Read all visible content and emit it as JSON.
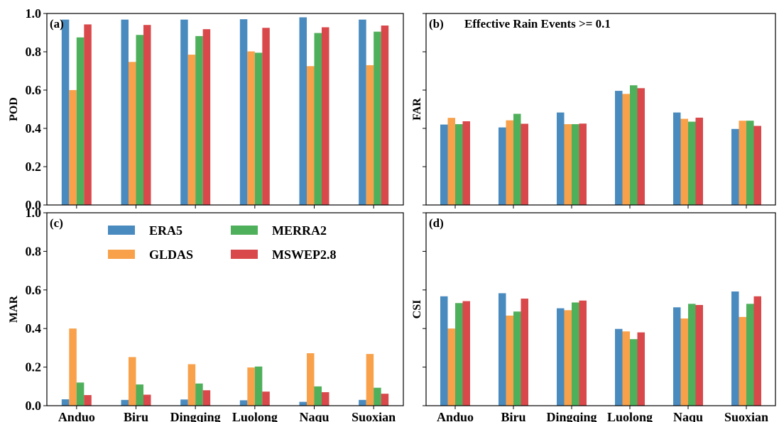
{
  "figure": {
    "stations": [
      "Anduo",
      "Biru",
      "Dingqing",
      "Luolong",
      "Naqu",
      "Suoxian"
    ],
    "series_colors": {
      "ERA5": "#4a8bbf",
      "GLDAS": "#f8a14a",
      "MERRA2": "#4fb05b",
      "MSWEP2.8": "#d9494b"
    },
    "legend": {
      "placement": "upper-left of panel (c)",
      "entries": [
        "ERA5",
        "GLDAS",
        "MERRA2",
        "MSWEP2.8"
      ]
    }
  },
  "chart_data": [
    {
      "type": "bar",
      "panel_label": "(a)",
      "title": "",
      "ylabel": "POD",
      "xlabel": "",
      "ylim": [
        0,
        1.0
      ],
      "yticks": [
        "0.0",
        "0.2",
        "0.4",
        "0.6",
        "0.8",
        "1.0"
      ],
      "categories": [
        "Anduo",
        "Biru",
        "Dingqing",
        "Luolong",
        "Naqu",
        "Suoxian"
      ],
      "show_xticklabels": false,
      "show_yticklabels": true,
      "series": [
        {
          "name": "ERA5",
          "values": [
            0.968,
            0.968,
            0.968,
            0.97,
            0.98,
            0.968
          ]
        },
        {
          "name": "GLDAS",
          "values": [
            0.6,
            0.747,
            0.785,
            0.802,
            0.725,
            0.73
          ]
        },
        {
          "name": "MERRA2",
          "values": [
            0.875,
            0.888,
            0.882,
            0.795,
            0.898,
            0.905
          ]
        },
        {
          "name": "MSWEP2.8",
          "values": [
            0.943,
            0.94,
            0.918,
            0.925,
            0.928,
            0.937
          ]
        }
      ]
    },
    {
      "type": "bar",
      "panel_label": "(b)",
      "title": "Effective Rain Events >= 0.1",
      "ylabel": "FAR",
      "xlabel": "",
      "ylim": [
        0,
        1.0
      ],
      "yticks": [],
      "categories": [
        "Anduo",
        "Biru",
        "Dingqing",
        "Luolong",
        "Naqu",
        "Suoxian"
      ],
      "show_xticklabels": false,
      "show_yticklabels": false,
      "series": [
        {
          "name": "ERA5",
          "values": [
            0.42,
            0.405,
            0.483,
            0.596,
            0.483,
            0.397
          ]
        },
        {
          "name": "GLDAS",
          "values": [
            0.455,
            0.442,
            0.422,
            0.58,
            0.45,
            0.44
          ]
        },
        {
          "name": "MERRA2",
          "values": [
            0.422,
            0.476,
            0.422,
            0.625,
            0.435,
            0.44
          ]
        },
        {
          "name": "MSWEP2.8",
          "values": [
            0.437,
            0.424,
            0.425,
            0.61,
            0.456,
            0.413
          ]
        }
      ]
    },
    {
      "type": "bar",
      "panel_label": "(c)",
      "title": "",
      "ylabel": "MAR",
      "xlabel": "",
      "ylim": [
        0,
        1.0
      ],
      "yticks": [
        "0.0",
        "0.2",
        "0.4",
        "0.6",
        "0.8",
        "1.0"
      ],
      "categories": [
        "Anduo",
        "Biru",
        "Dingqing",
        "Luolong",
        "Naqu",
        "Suoxian"
      ],
      "show_xticklabels": true,
      "show_yticklabels": true,
      "series": [
        {
          "name": "ERA5",
          "values": [
            0.033,
            0.03,
            0.032,
            0.028,
            0.02,
            0.03
          ]
        },
        {
          "name": "GLDAS",
          "values": [
            0.4,
            0.252,
            0.215,
            0.198,
            0.272,
            0.268
          ]
        },
        {
          "name": "MERRA2",
          "values": [
            0.12,
            0.11,
            0.115,
            0.203,
            0.1,
            0.093
          ]
        },
        {
          "name": "MSWEP2.8",
          "values": [
            0.055,
            0.057,
            0.08,
            0.073,
            0.07,
            0.062
          ]
        }
      ]
    },
    {
      "type": "bar",
      "panel_label": "(d)",
      "title": "",
      "ylabel": "CSI",
      "xlabel": "",
      "ylim": [
        0,
        1.0
      ],
      "yticks": [],
      "categories": [
        "Anduo",
        "Biru",
        "Dingqing",
        "Luolong",
        "Naqu",
        "Suoxian"
      ],
      "show_xticklabels": true,
      "show_yticklabels": false,
      "series": [
        {
          "name": "ERA5",
          "values": [
            0.567,
            0.583,
            0.505,
            0.398,
            0.51,
            0.592
          ]
        },
        {
          "name": "GLDAS",
          "values": [
            0.4,
            0.467,
            0.495,
            0.385,
            0.452,
            0.46
          ]
        },
        {
          "name": "MERRA2",
          "values": [
            0.532,
            0.488,
            0.535,
            0.345,
            0.528,
            0.528
          ]
        },
        {
          "name": "MSWEP2.8",
          "values": [
            0.542,
            0.555,
            0.545,
            0.38,
            0.522,
            0.567
          ]
        }
      ]
    }
  ]
}
